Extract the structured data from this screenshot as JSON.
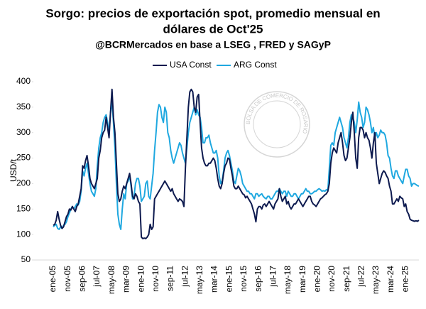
{
  "chart_data": {
    "type": "line",
    "title": [
      "Sorgo: precios de exportación spot, promedio mensual en",
      "dólares de Oct'25"
    ],
    "subtitle": "@BCRMercados en base a LSEG , FRED y SAGyP",
    "y_label": "USD/t",
    "watermark": "BOLSA DE COMERCIO DE ROSARIO",
    "ylim": [
      50,
      400
    ],
    "yticks": [
      50,
      100,
      150,
      200,
      250,
      300,
      350,
      400
    ],
    "grid": false,
    "legend": "top",
    "categories": [
      "ene-05",
      null,
      null,
      null,
      null,
      null,
      null,
      null,
      null,
      null,
      "nov-05",
      null,
      null,
      null,
      null,
      null,
      null,
      null,
      null,
      null,
      "sep-06",
      null,
      null,
      null,
      null,
      null,
      null,
      null,
      null,
      null,
      "jul-07",
      null,
      null,
      null,
      null,
      null,
      null,
      null,
      null,
      null,
      "may-08",
      null,
      null,
      null,
      null,
      null,
      null,
      null,
      null,
      null,
      "mar-09",
      null,
      null,
      null,
      null,
      null,
      null,
      null,
      null,
      null,
      "ene-10",
      null,
      null,
      null,
      null,
      null,
      null,
      null,
      null,
      null,
      "nov-10",
      null,
      null,
      null,
      null,
      null,
      null,
      null,
      null,
      null,
      "sep-11",
      null,
      null,
      null,
      null,
      null,
      null,
      null,
      null,
      null,
      "jul-12",
      null,
      null,
      null,
      null,
      null,
      null,
      null,
      null,
      null,
      "may-13",
      null,
      null,
      null,
      null,
      null,
      null,
      null,
      null,
      null,
      "mar-14",
      null,
      null,
      null,
      null,
      null,
      null,
      null,
      null,
      null,
      "ene-15",
      null,
      null,
      null,
      null,
      null,
      null,
      null,
      null,
      null,
      "nov-15",
      null,
      null,
      null,
      null,
      null,
      null,
      null,
      null,
      null,
      "sep-16",
      null,
      null,
      null,
      null,
      null,
      null,
      null,
      null,
      null,
      "jul-17",
      null,
      null,
      null,
      null,
      null,
      null,
      null,
      null,
      null,
      "may-18",
      null,
      null,
      null,
      null,
      null,
      null,
      null,
      null,
      null,
      "mar-19",
      null,
      null,
      null,
      null,
      null,
      null,
      null,
      null,
      null,
      "ene-20",
      null,
      null,
      null,
      null,
      null,
      null,
      null,
      null,
      null,
      "nov-20",
      null,
      null,
      null,
      null,
      null,
      null,
      null,
      null,
      null,
      "sep-21",
      null,
      null,
      null,
      null,
      null,
      null,
      null,
      null,
      null,
      "jul-22",
      null,
      null,
      null,
      null,
      null,
      null,
      null,
      null,
      null,
      "may-23",
      null,
      null,
      null,
      null,
      null,
      null,
      null,
      null,
      null,
      "mar-24",
      null,
      null,
      null,
      null,
      null,
      null,
      null,
      null,
      null,
      "ene-25",
      null,
      null,
      null,
      null,
      null,
      null,
      null,
      null,
      null
    ],
    "series": [
      {
        "name": "USA Const",
        "color": "#0d1a4f",
        "values": [
          118,
          120,
          128,
          145,
          130,
          118,
          112,
          115,
          125,
          135,
          140,
          150,
          148,
          155,
          150,
          145,
          155,
          160,
          175,
          190,
          235,
          230,
          245,
          255,
          235,
          210,
          200,
          195,
          190,
          200,
          210,
          250,
          265,
          290,
          300,
          305,
          330,
          310,
          290,
          340,
          385,
          330,
          300,
          240,
          180,
          165,
          170,
          185,
          195,
          190,
          200,
          210,
          220,
          200,
          175,
          170,
          180,
          175,
          165,
          160,
          95,
          92,
          93,
          92,
          95,
          100,
          120,
          110,
          115,
          170,
          175,
          180,
          185,
          190,
          195,
          200,
          205,
          200,
          195,
          190,
          185,
          190,
          180,
          175,
          170,
          165,
          170,
          168,
          165,
          155,
          230,
          290,
          350,
          380,
          385,
          380,
          350,
          340,
          370,
          375,
          320,
          270,
          250,
          240,
          235,
          235,
          240,
          240,
          245,
          250,
          245,
          230,
          210,
          195,
          190,
          200,
          220,
          235,
          240,
          250,
          248,
          230,
          215,
          195,
          190,
          190,
          195,
          190,
          185,
          180,
          178,
          172,
          175,
          170,
          165,
          160,
          150,
          140,
          125,
          150,
          155,
          155,
          150,
          158,
          160,
          155,
          160,
          165,
          160,
          155,
          150,
          160,
          165,
          170,
          190,
          175,
          165,
          170,
          175,
          160,
          165,
          155,
          150,
          155,
          160,
          160,
          165,
          170,
          165,
          160,
          155,
          160,
          165,
          170,
          175,
          175,
          165,
          160,
          158,
          155,
          160,
          165,
          170,
          172,
          175,
          178,
          180,
          185,
          200,
          240,
          260,
          270,
          265,
          260,
          280,
          290,
          300,
          280,
          255,
          245,
          250,
          270,
          290,
          320,
          340,
          300,
          250,
          230,
          290,
          310,
          310,
          305,
          290,
          300,
          290,
          285,
          270,
          250,
          280,
          300,
          240,
          220,
          200,
          210,
          220,
          225,
          222,
          215,
          210,
          195,
          185,
          160,
          160,
          165,
          170,
          165,
          175,
          172,
          170,
          155,
          160,
          145,
          140,
          130,
          128,
          127,
          126,
          127,
          126,
          128
        ]
      },
      {
        "name": "ARG Const",
        "color": "#1fa8e0",
        "values": [
          115,
          118,
          120,
          112,
          110,
          115,
          112,
          118,
          120,
          125,
          135,
          142,
          150,
          155,
          150,
          155,
          160,
          158,
          165,
          185,
          225,
          215,
          230,
          240,
          220,
          200,
          185,
          180,
          175,
          190,
          235,
          270,
          290,
          300,
          320,
          330,
          335,
          320,
          300,
          340,
          360,
          320,
          270,
          200,
          140,
          120,
          110,
          150,
          180,
          170,
          200,
          205,
          215,
          195,
          170,
          175,
          200,
          210,
          210,
          195,
          165,
          170,
          175,
          200,
          205,
          175,
          170,
          195,
          220,
          265,
          300,
          340,
          355,
          350,
          330,
          320,
          350,
          340,
          300,
          290,
          265,
          250,
          240,
          250,
          260,
          270,
          280,
          275,
          260,
          250,
          240,
          270,
          300,
          320,
          330,
          340,
          350,
          335,
          345,
          335,
          330,
          310,
          280,
          280,
          290,
          290,
          295,
          280,
          270,
          260,
          260,
          265,
          250,
          215,
          200,
          205,
          225,
          250,
          260,
          265,
          255,
          240,
          225,
          205,
          200,
          215,
          230,
          225,
          215,
          200,
          195,
          190,
          185,
          185,
          180,
          180,
          175,
          170,
          180,
          180,
          175,
          178,
          180,
          175,
          172,
          170,
          175,
          175,
          170,
          170,
          175,
          180,
          185,
          185,
          190,
          185,
          180,
          185,
          185,
          175,
          185,
          180,
          175,
          175,
          180,
          180,
          175,
          170,
          175,
          180,
          180,
          185,
          190,
          185,
          185,
          180,
          180,
          182,
          185,
          185,
          188,
          190,
          188,
          185,
          186,
          185,
          188,
          187,
          230,
          275,
          280,
          275,
          300,
          310,
          320,
          330,
          320,
          310,
          290,
          280,
          270,
          290,
          320,
          335,
          330,
          320,
          300,
          325,
          360,
          340,
          330,
          310,
          320,
          350,
          345,
          335,
          320,
          300,
          310,
          290,
          300,
          290,
          295,
          305,
          300,
          300,
          295,
          280,
          255,
          250,
          230,
          215,
          210,
          225,
          225,
          215,
          210,
          205,
          200,
          215,
          228,
          228,
          215,
          210,
          195,
          200,
          200,
          198,
          196,
          195
        ]
      }
    ]
  }
}
